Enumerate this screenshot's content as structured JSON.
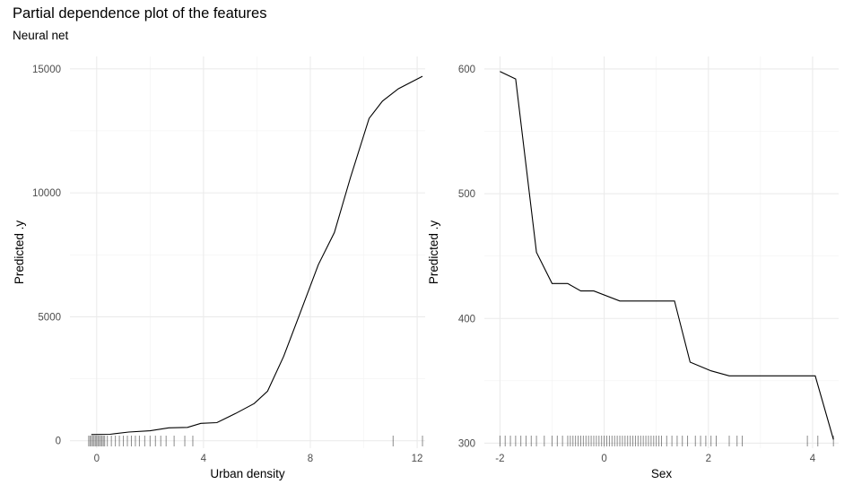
{
  "title": "Partial dependence plot of the features",
  "subtitle": "Neural net",
  "chart_data": [
    {
      "type": "line",
      "xlabel": "Urban density",
      "ylabel": "Predicted .y",
      "xlim": [
        -1,
        12.3
      ],
      "ylim": [
        -300,
        15500
      ],
      "x_ticks": [
        0,
        4,
        8,
        12
      ],
      "y_ticks": [
        0,
        5000,
        10000,
        15000
      ],
      "grid": true,
      "series": [
        {
          "x": [
            -0.2,
            0.5,
            1.2,
            2.0,
            2.7,
            3.4,
            3.9,
            4.5,
            5.2,
            5.9,
            6.4,
            7.0,
            7.6,
            8.3,
            8.9,
            9.5,
            10.2,
            10.7,
            11.3,
            12.2
          ],
          "y": [
            250,
            260,
            350,
            400,
            520,
            540,
            700,
            730,
            1100,
            1500,
            2000,
            3400,
            5100,
            7100,
            8400,
            10600,
            13000,
            13700,
            14200,
            14700
          ]
        }
      ],
      "rug": [
        -0.3,
        -0.25,
        -0.2,
        -0.15,
        -0.1,
        -0.05,
        0.0,
        0.05,
        0.1,
        0.15,
        0.2,
        0.25,
        0.3,
        0.4,
        0.55,
        0.7,
        0.85,
        1.0,
        1.15,
        1.3,
        1.45,
        1.6,
        1.8,
        2.0,
        2.2,
        2.4,
        2.6,
        2.9,
        3.3,
        3.6,
        11.1,
        12.2
      ]
    },
    {
      "type": "line",
      "xlabel": "Sex",
      "ylabel": "Predicted .y",
      "xlim": [
        -2.3,
        4.5
      ],
      "ylim": [
        296,
        610
      ],
      "x_ticks": [
        -2,
        0,
        2,
        4
      ],
      "y_ticks": [
        300,
        400,
        500,
        600
      ],
      "grid": true,
      "series": [
        {
          "x": [
            -2.0,
            -1.7,
            -1.3,
            -1.0,
            -0.7,
            -0.45,
            -0.2,
            0.3,
            0.9,
            1.35,
            1.65,
            2.05,
            2.4,
            3.5,
            4.05,
            4.4
          ],
          "y": [
            598,
            592,
            453,
            428,
            428,
            422,
            422,
            414,
            414,
            414,
            365,
            358,
            354,
            354,
            354,
            303
          ]
        }
      ],
      "rug": [
        -2.0,
        -1.9,
        -1.8,
        -1.7,
        -1.6,
        -1.5,
        -1.4,
        -1.3,
        -1.15,
        -1.0,
        -0.9,
        -0.8,
        -0.7,
        -0.65,
        -0.6,
        -0.55,
        -0.5,
        -0.45,
        -0.4,
        -0.35,
        -0.3,
        -0.25,
        -0.2,
        -0.15,
        -0.1,
        -0.05,
        0.0,
        0.05,
        0.1,
        0.15,
        0.2,
        0.25,
        0.3,
        0.35,
        0.4,
        0.45,
        0.5,
        0.55,
        0.6,
        0.65,
        0.7,
        0.75,
        0.8,
        0.85,
        0.9,
        0.95,
        1.0,
        1.05,
        1.1,
        1.2,
        1.3,
        1.4,
        1.5,
        1.6,
        1.75,
        1.85,
        1.95,
        2.05,
        2.15,
        2.4,
        2.55,
        2.65,
        3.9,
        4.1,
        4.4
      ]
    }
  ]
}
